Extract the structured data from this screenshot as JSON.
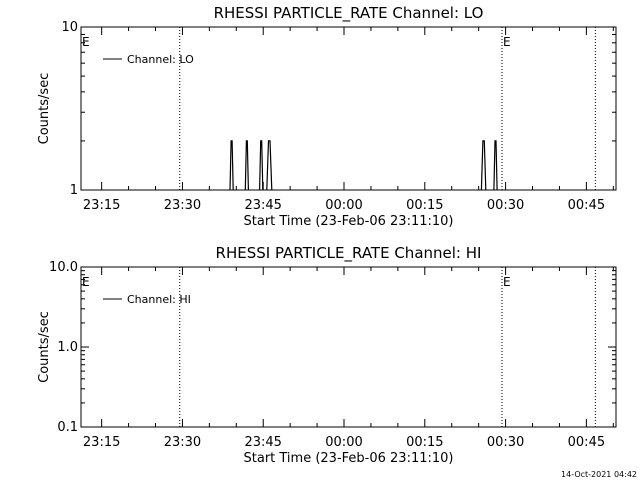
{
  "footer_timestamp": "14-Oct-2021 04:42",
  "chart_data": [
    {
      "type": "line",
      "title": "RHESSI PARTICLE_RATE Channel: LO",
      "xlabel": "Start Time (23-Feb-06 23:11:10)",
      "ylabel": "Counts/sec",
      "y_scale": "log",
      "ylim": [
        1,
        10
      ],
      "y_ticks": [
        "1",
        "10"
      ],
      "xlim": [
        "23:11:10",
        "00:50:30"
      ],
      "x_ticks": [
        "23:15",
        "23:30",
        "23:45",
        "00:00",
        "00:15",
        "00:30",
        "00:45"
      ],
      "vlines": [
        "23:29:30",
        "00:29:20",
        "00:46:40"
      ],
      "vline_labels": [
        {
          "at": "23:11:10",
          "text": "E"
        },
        {
          "at": "00:29:20",
          "text": "E"
        }
      ],
      "legend": {
        "position": "top-left",
        "entries": [
          "Channel: LO"
        ]
      },
      "series": [
        {
          "name": "Channel: LO",
          "color": "#000000",
          "spikes": [
            {
              "start": "23:38:50",
              "end": "23:39:25",
              "value": 2
            },
            {
              "start": "23:41:40",
              "end": "23:42:15",
              "value": 2
            },
            {
              "start": "23:44:20",
              "end": "23:44:55",
              "value": 2
            },
            {
              "start": "23:45:40",
              "end": "23:46:35",
              "value": 2
            },
            {
              "start": "00:25:30",
              "end": "00:26:20",
              "value": 2
            },
            {
              "start": "00:27:50",
              "end": "00:28:25",
              "value": 2
            }
          ]
        }
      ]
    },
    {
      "type": "line",
      "title": "RHESSI PARTICLE_RATE Channel: HI",
      "xlabel": "Start Time (23-Feb-06 23:11:10)",
      "ylabel": "Counts/sec",
      "y_scale": "log",
      "ylim": [
        0.1,
        10
      ],
      "y_ticks": [
        "0.1",
        "1.0",
        "10.0"
      ],
      "xlim": [
        "23:11:10",
        "00:50:30"
      ],
      "x_ticks": [
        "23:15",
        "23:30",
        "23:45",
        "00:00",
        "00:15",
        "00:30",
        "00:45"
      ],
      "vlines": [
        "23:29:30",
        "00:29:20",
        "00:46:40"
      ],
      "vline_labels": [
        {
          "at": "23:11:10",
          "text": "E"
        },
        {
          "at": "00:29:20",
          "text": "E"
        }
      ],
      "legend": {
        "position": "top-left",
        "entries": [
          "Channel: HI"
        ]
      },
      "series": [
        {
          "name": "Channel: HI",
          "color": "#000000",
          "spikes": []
        }
      ]
    }
  ]
}
